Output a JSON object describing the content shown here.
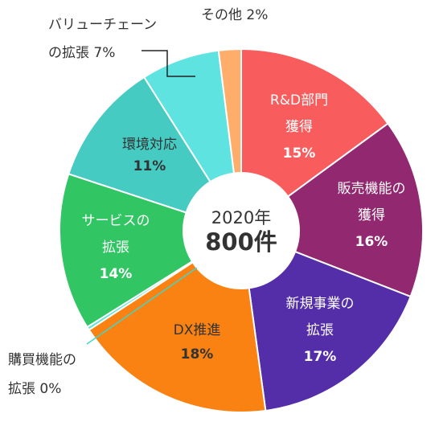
{
  "chart_data": {
    "type": "pie",
    "donut": true,
    "center_label": {
      "year": "2020年",
      "total": "800件"
    },
    "slices": [
      {
        "label_lines": [
          "R&D部門",
          "獲得"
        ],
        "pct_text": "15%",
        "value": 15,
        "color": "#f95c5c",
        "label_color": "#ffffff"
      },
      {
        "label_lines": [
          "販売機能の",
          "獲得"
        ],
        "pct_text": "16%",
        "value": 16,
        "color": "#922870",
        "label_color": "#ffffff"
      },
      {
        "label_lines": [
          "新規事業の",
          "拡張"
        ],
        "pct_text": "17%",
        "value": 17,
        "color": "#542ea8",
        "label_color": "#ffffff"
      },
      {
        "label_lines": [
          "DX推進"
        ],
        "pct_text": "18%",
        "value": 18,
        "color": "#fa8212",
        "label_color": "#333333"
      },
      {
        "label_lines": [
          "購買機能の",
          "拡張 0%"
        ],
        "pct_text": "",
        "value": 0.3,
        "color": "#5ee3d9",
        "label_color": "#333333"
      },
      {
        "label_lines": [
          "サービスの",
          "拡張"
        ],
        "pct_text": "14%",
        "value": 14,
        "color": "#31c663",
        "label_color": "#ffffff"
      },
      {
        "label_lines": [
          "環境対応"
        ],
        "pct_text": "11%",
        "value": 11,
        "color": "#45cbc2",
        "label_color": "#333333"
      },
      {
        "label_lines": [
          "バリューチェーン",
          "の拡張 7%"
        ],
        "pct_text": "",
        "value": 7,
        "color": "#5ee3e0",
        "label_color": "#333333"
      },
      {
        "label_lines": [
          "その他 2%"
        ],
        "pct_text": "",
        "value": 2,
        "color": "#ffad6b",
        "label_color": "#333333"
      }
    ]
  }
}
